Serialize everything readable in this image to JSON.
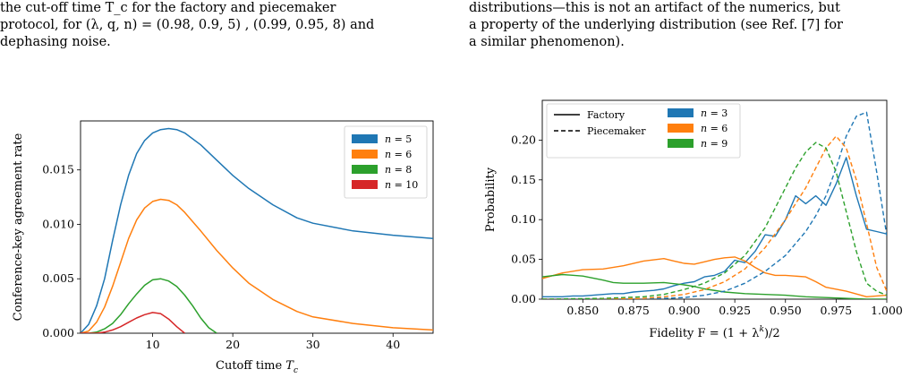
{
  "left_text": {
    "line1": "the cut-off time T_c for the factory and piecemaker",
    "line2": "protocol, for (λ, q, n) = (0.98, 0.9, 5) , (0.99, 0.95, 8) and",
    "line3": "dephasing noise."
  },
  "right_text": {
    "line1": "distributions—this is not an artifact of the numerics, but",
    "line2": "a property of the underlying distribution (see Ref. [7] for",
    "line3": "a similar phenomenon)."
  },
  "chart_data": [
    {
      "type": "line",
      "xlabel": "Cutoff time T_c",
      "ylabel": "Conference-key agreement rate",
      "xlim": [
        1,
        45
      ],
      "ylim": [
        0,
        0.0195
      ],
      "xticks": [
        "10",
        "20",
        "30",
        "40"
      ],
      "yticks": [
        "0.000",
        "0.005",
        "0.010",
        "0.015"
      ],
      "grid": false,
      "legend_position": "top-right",
      "series": [
        {
          "name": "n = 5",
          "color": "#1f77b4",
          "x": [
            1,
            2,
            3,
            4,
            5,
            6,
            7,
            8,
            9,
            10,
            11,
            12,
            13,
            14,
            16,
            18,
            20,
            22,
            25,
            28,
            30,
            35,
            40,
            45
          ],
          "y": [
            0.0,
            0.0008,
            0.0025,
            0.005,
            0.0085,
            0.0118,
            0.0145,
            0.0165,
            0.0177,
            0.0184,
            0.0187,
            0.0188,
            0.0187,
            0.0184,
            0.0173,
            0.0159,
            0.0145,
            0.0133,
            0.0118,
            0.0106,
            0.0101,
            0.0094,
            0.009,
            0.0087
          ]
        },
        {
          "name": "n = 6",
          "color": "#ff7f0e",
          "x": [
            1,
            2,
            3,
            4,
            5,
            6,
            7,
            8,
            9,
            10,
            11,
            12,
            13,
            14,
            16,
            18,
            20,
            22,
            25,
            28,
            30,
            35,
            40,
            45
          ],
          "y": [
            0.0,
            0.0002,
            0.001,
            0.0024,
            0.0043,
            0.0065,
            0.0087,
            0.0104,
            0.0115,
            0.0121,
            0.0123,
            0.0122,
            0.0118,
            0.0111,
            0.0094,
            0.0076,
            0.006,
            0.0046,
            0.0031,
            0.002,
            0.0015,
            0.0009,
            0.0005,
            0.0003
          ]
        },
        {
          "name": "n = 8",
          "color": "#2ca02c",
          "x": [
            1,
            2,
            3,
            4,
            5,
            6,
            7,
            8,
            9,
            10,
            11,
            12,
            13,
            14,
            15,
            16,
            17,
            18
          ],
          "y": [
            0.0,
            0.0,
            0.0001,
            0.0004,
            0.0009,
            0.0017,
            0.0027,
            0.0036,
            0.0044,
            0.0049,
            0.005,
            0.0048,
            0.0043,
            0.0035,
            0.0025,
            0.0014,
            0.0005,
            0.0
          ]
        },
        {
          "name": "n = 10",
          "color": "#d62728",
          "x": [
            1,
            3,
            4,
            5,
            6,
            7,
            8,
            9,
            10,
            11,
            12,
            13,
            14
          ],
          "y": [
            0.0,
            0.0,
            0.0001,
            0.0003,
            0.0006,
            0.001,
            0.0014,
            0.0017,
            0.0019,
            0.0018,
            0.0013,
            0.0006,
            0.0
          ]
        }
      ]
    },
    {
      "type": "line",
      "xlabel": "Fidelity F = (1 + λ^k)/2",
      "ylabel": "Probability",
      "xlim": [
        0.83,
        1.0
      ],
      "ylim": [
        0,
        0.25
      ],
      "xticks": [
        "0.850",
        "0.875",
        "0.900",
        "0.925",
        "0.950",
        "0.975",
        "1.000"
      ],
      "yticks": [
        "0.00",
        "0.05",
        "0.10",
        "0.15",
        "0.20"
      ],
      "grid": false,
      "legend_position": "top-left",
      "style_legend": [
        {
          "label": "Factory",
          "style": "solid"
        },
        {
          "label": "Piecemaker",
          "style": "dashed"
        }
      ],
      "series": [
        {
          "name": "n = 3",
          "color": "#1f77b4",
          "style": "solid",
          "x": [
            0.83,
            0.84,
            0.845,
            0.85,
            0.855,
            0.86,
            0.865,
            0.87,
            0.875,
            0.88,
            0.885,
            0.89,
            0.895,
            0.9,
            0.905,
            0.91,
            0.915,
            0.92,
            0.925,
            0.93,
            0.935,
            0.94,
            0.945,
            0.95,
            0.955,
            0.96,
            0.965,
            0.97,
            0.975,
            0.98,
            0.985,
            0.99,
            0.995,
            1.0
          ],
          "y": [
            0.003,
            0.003,
            0.004,
            0.004,
            0.005,
            0.006,
            0.007,
            0.007,
            0.009,
            0.01,
            0.011,
            0.013,
            0.017,
            0.02,
            0.022,
            0.028,
            0.03,
            0.035,
            0.049,
            0.046,
            0.06,
            0.081,
            0.079,
            0.1,
            0.13,
            0.12,
            0.13,
            0.118,
            0.145,
            0.178,
            0.13,
            0.088,
            0.085,
            0.082
          ]
        },
        {
          "name": "n = 6",
          "color": "#ff7f0e",
          "style": "solid",
          "x": [
            0.83,
            0.84,
            0.85,
            0.86,
            0.87,
            0.88,
            0.89,
            0.895,
            0.9,
            0.905,
            0.91,
            0.915,
            0.92,
            0.925,
            0.93,
            0.935,
            0.94,
            0.945,
            0.95,
            0.96,
            0.965,
            0.97,
            0.98,
            0.99,
            1.0
          ],
          "y": [
            0.026,
            0.033,
            0.037,
            0.038,
            0.042,
            0.048,
            0.051,
            0.048,
            0.045,
            0.044,
            0.047,
            0.05,
            0.052,
            0.053,
            0.048,
            0.04,
            0.033,
            0.03,
            0.03,
            0.028,
            0.022,
            0.015,
            0.01,
            0.003,
            0.005
          ]
        },
        {
          "name": "n = 9",
          "color": "#2ca02c",
          "style": "solid",
          "x": [
            0.83,
            0.84,
            0.85,
            0.86,
            0.865,
            0.87,
            0.88,
            0.89,
            0.9,
            0.905,
            0.91,
            0.92,
            0.93,
            0.94,
            0.95,
            0.96,
            0.97,
            0.98,
            0.99,
            1.0
          ],
          "y": [
            0.028,
            0.031,
            0.029,
            0.024,
            0.021,
            0.02,
            0.02,
            0.021,
            0.018,
            0.016,
            0.013,
            0.009,
            0.007,
            0.006,
            0.005,
            0.003,
            0.002,
            0.001,
            0.0,
            0.0
          ]
        },
        {
          "name": "n = 3",
          "color": "#1f77b4",
          "style": "dashed",
          "x": [
            0.83,
            0.85,
            0.87,
            0.89,
            0.9,
            0.91,
            0.92,
            0.93,
            0.94,
            0.95,
            0.96,
            0.965,
            0.97,
            0.975,
            0.98,
            0.985,
            0.99,
            0.995,
            1.0
          ],
          "y": [
            0.0,
            0.0,
            0.0,
            0.001,
            0.002,
            0.005,
            0.01,
            0.02,
            0.035,
            0.055,
            0.085,
            0.105,
            0.13,
            0.165,
            0.205,
            0.23,
            0.235,
            0.16,
            0.08
          ]
        },
        {
          "name": "n = 6",
          "color": "#ff7f0e",
          "style": "dashed",
          "x": [
            0.83,
            0.86,
            0.88,
            0.89,
            0.9,
            0.91,
            0.92,
            0.93,
            0.94,
            0.95,
            0.96,
            0.965,
            0.97,
            0.975,
            0.98,
            0.985,
            0.99,
            0.995,
            1.0
          ],
          "y": [
            0.0,
            0.0,
            0.001,
            0.003,
            0.006,
            0.012,
            0.022,
            0.038,
            0.065,
            0.1,
            0.14,
            0.165,
            0.19,
            0.205,
            0.19,
            0.15,
            0.095,
            0.04,
            0.01
          ]
        },
        {
          "name": "n = 9",
          "color": "#2ca02c",
          "style": "dashed",
          "x": [
            0.83,
            0.86,
            0.88,
            0.89,
            0.9,
            0.91,
            0.92,
            0.93,
            0.94,
            0.95,
            0.955,
            0.96,
            0.965,
            0.97,
            0.975,
            0.98,
            0.985,
            0.99,
            0.995,
            1.0
          ],
          "y": [
            0.0,
            0.001,
            0.003,
            0.006,
            0.012,
            0.02,
            0.033,
            0.055,
            0.09,
            0.14,
            0.165,
            0.185,
            0.197,
            0.19,
            0.16,
            0.11,
            0.06,
            0.02,
            0.01,
            0.005
          ]
        }
      ]
    }
  ]
}
